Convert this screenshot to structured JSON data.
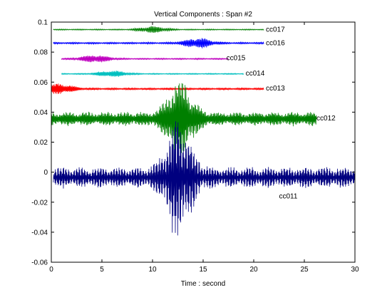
{
  "chart_data": {
    "type": "line",
    "title": "Vertical Components : Span #2",
    "xlabel": "Time : second",
    "ylabel": "",
    "xlim": [
      0,
      30
    ],
    "ylim": [
      -0.06,
      0.1
    ],
    "xticks": [
      "0",
      "5",
      "10",
      "15",
      "20",
      "25",
      "30"
    ],
    "yticks": [
      "-0.06",
      "-0.04",
      "-0.02",
      "0",
      "0.02",
      "0.04",
      "0.06",
      "0.08",
      "0.1"
    ],
    "grid": false,
    "legend": "none",
    "series": [
      {
        "name": "cc017",
        "color": "#007f00",
        "baseline": 0.095,
        "x_start": 0.2,
        "x_end": 21,
        "peak_amplitude": 0.0025,
        "peak_time": 10
      },
      {
        "name": "cc016",
        "color": "#0000ff",
        "baseline": 0.086,
        "x_start": 0.2,
        "x_end": 21,
        "peak_amplitude": 0.004,
        "peak_time": 14.5
      },
      {
        "name": "cc015",
        "color": "#bf00bf",
        "baseline": 0.0755,
        "x_start": 1,
        "x_end": 17.5,
        "peak_amplitude": 0.003,
        "peak_time": 4.3
      },
      {
        "name": "cc014",
        "color": "#00bfbf",
        "baseline": 0.0655,
        "x_start": 1,
        "x_end": 19,
        "peak_amplitude": 0.0025,
        "peak_time": 6
      },
      {
        "name": "cc013",
        "color": "#ff0000",
        "baseline": 0.0555,
        "x_start": 0,
        "x_end": 21,
        "peak_amplitude": 0.004,
        "peak_time": 0.8
      },
      {
        "name": "cc012",
        "color": "#007f00",
        "baseline": 0.0355,
        "x_start": 0,
        "x_end": 26.2,
        "peak_amplitude": 0.031,
        "peak_time": 12.7
      },
      {
        "name": "cc011",
        "color": "#00007f",
        "baseline": -0.0035,
        "x_start": 0.2,
        "x_end": 30,
        "peak_amplitude": 0.047,
        "peak_time": 12.6
      }
    ],
    "label_positions": [
      {
        "name": "cc017",
        "x": 21.2,
        "y": 0.0935
      },
      {
        "name": "cc016",
        "x": 21.2,
        "y": 0.0845
      },
      {
        "name": "cc015",
        "x": 17.3,
        "y": 0.0745
      },
      {
        "name": "cc014",
        "x": 19.2,
        "y": 0.0645
      },
      {
        "name": "cc013",
        "x": 21.2,
        "y": 0.0545
      },
      {
        "name": "cc012",
        "x": 26.2,
        "y": 0.0345
      },
      {
        "name": "cc011",
        "x": 22.5,
        "y": -0.0175
      }
    ]
  }
}
